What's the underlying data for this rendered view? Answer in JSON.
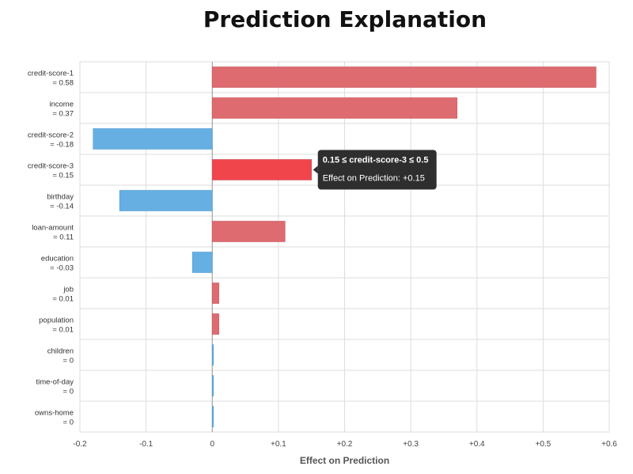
{
  "chart_data": {
    "type": "bar",
    "orientation": "horizontal",
    "title": "Prediction Explanation",
    "xlabel": "Effect on Prediction",
    "xlim": [
      -0.2,
      0.6
    ],
    "x_ticks": [
      "-0.2",
      "-0.1",
      "0",
      "+0.1",
      "+0.2",
      "+0.3",
      "+0.4",
      "+0.5",
      "+0.6"
    ],
    "grid": true,
    "categories": [
      {
        "feature": "credit-score-1",
        "value_label": "= 0.58"
      },
      {
        "feature": "income",
        "value_label": "= 0.37"
      },
      {
        "feature": "credit-score-2",
        "value_label": "= -0.18"
      },
      {
        "feature": "credit-score-3",
        "value_label": "= 0.15"
      },
      {
        "feature": "birthday",
        "value_label": "= -0.14"
      },
      {
        "feature": "loan-amount",
        "value_label": "= 0.11"
      },
      {
        "feature": "education",
        "value_label": "= -0.03"
      },
      {
        "feature": "job",
        "value_label": "= 0.01"
      },
      {
        "feature": "population",
        "value_label": "= 0.01"
      },
      {
        "feature": "children",
        "value_label": "= 0"
      },
      {
        "feature": "time-of-day",
        "value_label": "= 0"
      },
      {
        "feature": "owns-home",
        "value_label": "= 0"
      }
    ],
    "values": [
      0.58,
      0.37,
      -0.18,
      0.15,
      -0.14,
      0.11,
      -0.03,
      0.01,
      0.01,
      0.0,
      0.0,
      0.0
    ],
    "colors": {
      "positive": "#dd6b6f",
      "negative": "#66afe3",
      "highlight": "#f0454b",
      "grid": "#dddddd",
      "tooltip_bg": "#2e2e2e"
    },
    "highlighted_index": 3,
    "tooltip": {
      "title": "0.15 ≤ credit-score-3 ≤ 0.5",
      "text": "Effect on Prediction: +0.15"
    }
  }
}
